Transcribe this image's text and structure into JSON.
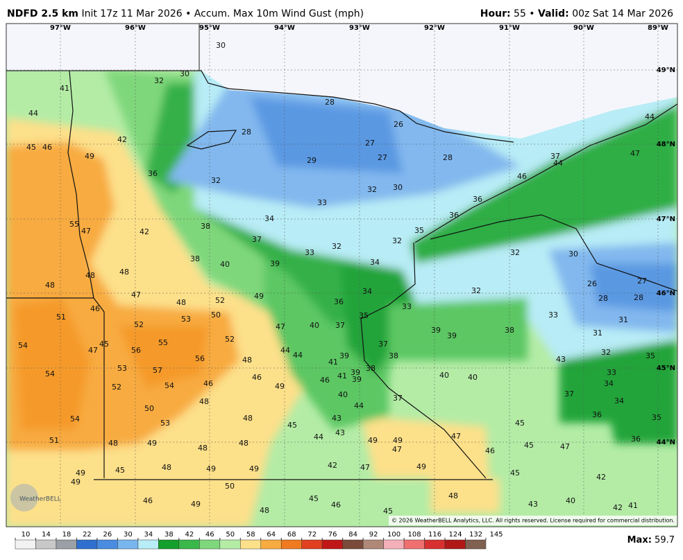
{
  "header": {
    "model": "NDFD 2.5 km",
    "description": "Init 17z 11 Mar 2026 • Accum. Max 10m Wind Gust (mph)",
    "hour_label": "Hour:",
    "hour": "55 •",
    "valid_label": "Valid:",
    "valid": "00z Sat 14 Mar 2026"
  },
  "longitudes": [
    "97°W",
    "96°W",
    "95°W",
    "94°W",
    "93°W",
    "92°W",
    "91°W",
    "90°W",
    "89°W"
  ],
  "latitudes": [
    "49°N",
    "48°N",
    "47°N",
    "46°N",
    "45°N",
    "44°N"
  ],
  "map_values": [
    30,
    30,
    32,
    41,
    44,
    42,
    28,
    45,
    46,
    49,
    36,
    32,
    29,
    27,
    27,
    28,
    26,
    28,
    32,
    30,
    33,
    55,
    47,
    42,
    38,
    34,
    37,
    32,
    32,
    33,
    38,
    40,
    39,
    34,
    34,
    36,
    35,
    33,
    48,
    48,
    48,
    47,
    48,
    52,
    49,
    46,
    51,
    50,
    53,
    52,
    47,
    40,
    37,
    39,
    39,
    38,
    54,
    55,
    52,
    45,
    47,
    56,
    56,
    48,
    44,
    44,
    41,
    39,
    37,
    38,
    57,
    53,
    54,
    46,
    46,
    49,
    46,
    41,
    39,
    39,
    38,
    40,
    40,
    43,
    52,
    54,
    48,
    40,
    37,
    44,
    50,
    54,
    53,
    48,
    43,
    45,
    45,
    43,
    44,
    47,
    48,
    49,
    51,
    48,
    48,
    49,
    49,
    47,
    46,
    45,
    47,
    49,
    49,
    45,
    48,
    49,
    49,
    42,
    47,
    49,
    45,
    42,
    50,
    46,
    49,
    45,
    46,
    48,
    45,
    48,
    43,
    40,
    42,
    41,
    44,
    47,
    37,
    44,
    46,
    36,
    36,
    35,
    32,
    30,
    26,
    27,
    28,
    28,
    32,
    33,
    31,
    31,
    32,
    35,
    33,
    34,
    37,
    34,
    36,
    35,
    36
  ],
  "logo": "WeatherBELL",
  "copyright": "© 2026 WeatherBELL Analytics, LLC. All rights reserved. License required for commercial distribution.",
  "colorbar": {
    "ticks": [
      10,
      14,
      18,
      22,
      26,
      30,
      34,
      38,
      42,
      46,
      50,
      58,
      64,
      68,
      72,
      76,
      84,
      92,
      100,
      108,
      116,
      124,
      132,
      145
    ]
  },
  "max_label": "Max:",
  "max_value": 59.7
}
